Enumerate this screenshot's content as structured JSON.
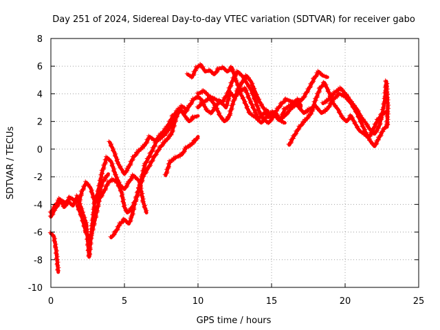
{
  "chart_data": {
    "type": "line",
    "title": "Day 251 of 2024, Sidereal Day-to-day VTEC variation (SDTVAR) for receiver gabo",
    "xlabel": "GPS time / hours",
    "ylabel": "SDTVAR / TECUs",
    "xlim": [
      0,
      25
    ],
    "ylim": [
      -10,
      8
    ],
    "xticks": [
      0,
      5,
      10,
      15,
      20,
      25
    ],
    "yticks": [
      -10,
      -8,
      -6,
      -4,
      -2,
      0,
      2,
      4,
      6,
      8
    ],
    "xtick_labels": [
      "0",
      "5",
      "10",
      "15",
      "20",
      "25"
    ],
    "ytick_labels": [
      "-10",
      "-8",
      "-6",
      "-4",
      "-2",
      "0",
      "2",
      "4",
      "6",
      "8"
    ],
    "grid": true,
    "marker": "plus",
    "color": "#ff0000",
    "series": [
      {
        "name": "trace-1",
        "points": [
          [
            0.0,
            -4.6
          ],
          [
            0.3,
            -4.1
          ],
          [
            0.6,
            -3.6
          ],
          [
            0.9,
            -4.2
          ],
          [
            1.2,
            -3.8
          ],
          [
            1.5,
            -4.1
          ],
          [
            1.8,
            -3.4
          ],
          [
            2.1,
            -4.4
          ],
          [
            2.4,
            -5.4
          ],
          [
            2.6,
            -7.8
          ],
          [
            2.8,
            -5.6
          ],
          [
            3.0,
            -3.6
          ],
          [
            3.3,
            -3.2
          ],
          [
            3.5,
            -2.4
          ],
          [
            3.9,
            -1.8
          ]
        ]
      },
      {
        "name": "trace-2",
        "points": [
          [
            0.0,
            -6.1
          ],
          [
            0.2,
            -6.3
          ],
          [
            0.35,
            -7.2
          ],
          [
            0.5,
            -8.9
          ]
        ]
      },
      {
        "name": "trace-3",
        "points": [
          [
            0.0,
            -4.9
          ],
          [
            0.3,
            -4.3
          ],
          [
            0.7,
            -3.7
          ],
          [
            1.0,
            -3.9
          ],
          [
            1.3,
            -3.5
          ],
          [
            1.6,
            -3.7
          ],
          [
            1.9,
            -3.9
          ],
          [
            2.1,
            -3.1
          ],
          [
            2.4,
            -2.4
          ],
          [
            2.7,
            -2.8
          ],
          [
            3.0,
            -3.9
          ],
          [
            3.2,
            -3.1
          ],
          [
            3.5,
            -1.6
          ],
          [
            3.8,
            -0.6
          ],
          [
            4.1,
            -0.9
          ],
          [
            4.4,
            -1.9
          ],
          [
            4.7,
            -2.6
          ],
          [
            5.0,
            -2.9
          ],
          [
            5.3,
            -2.4
          ],
          [
            5.6,
            -1.9
          ],
          [
            6.0,
            -2.3
          ],
          [
            6.3,
            -3.9
          ],
          [
            6.5,
            -4.6
          ]
        ]
      },
      {
        "name": "trace-4",
        "points": [
          [
            1.8,
            -4.1
          ],
          [
            2.1,
            -4.9
          ],
          [
            2.4,
            -6.1
          ],
          [
            2.7,
            -6.4
          ],
          [
            3.0,
            -5.1
          ],
          [
            3.3,
            -3.6
          ],
          [
            3.6,
            -3.1
          ],
          [
            3.9,
            -2.4
          ],
          [
            4.2,
            -2.2
          ],
          [
            4.5,
            -2.4
          ],
          [
            4.8,
            -3.1
          ],
          [
            5.0,
            -4.2
          ],
          [
            5.2,
            -4.6
          ],
          [
            5.5,
            -4.3
          ],
          [
            5.8,
            -3.6
          ],
          [
            6.1,
            -2.4
          ],
          [
            6.4,
            -1.1
          ],
          [
            6.8,
            -0.3
          ],
          [
            7.2,
            0.6
          ],
          [
            7.6,
            0.9
          ],
          [
            8.0,
            1.4
          ],
          [
            8.4,
            2.1
          ],
          [
            8.8,
            2.9
          ],
          [
            9.1,
            2.4
          ],
          [
            9.4,
            2.0
          ],
          [
            9.7,
            2.3
          ],
          [
            10.0,
            2.4
          ]
        ]
      },
      {
        "name": "trace-5",
        "points": [
          [
            4.0,
            0.5
          ],
          [
            4.3,
            -0.2
          ],
          [
            4.6,
            -1.1
          ],
          [
            5.0,
            -1.8
          ],
          [
            5.3,
            -1.3
          ],
          [
            5.6,
            -0.6
          ],
          [
            6.0,
            -0.1
          ],
          [
            6.4,
            0.3
          ],
          [
            6.7,
            0.9
          ],
          [
            7.1,
            0.6
          ],
          [
            7.5,
            1.1
          ],
          [
            7.9,
            1.6
          ],
          [
            8.3,
            2.4
          ],
          [
            8.7,
            2.9
          ],
          [
            9.1,
            2.6
          ],
          [
            9.4,
            3.1
          ],
          [
            9.7,
            3.6
          ],
          [
            10.0,
            3.8
          ],
          [
            10.4,
            3.4
          ],
          [
            10.8,
            3.7
          ],
          [
            11.2,
            3.1
          ],
          [
            11.5,
            3.5
          ],
          [
            11.9,
            3.0
          ],
          [
            12.2,
            4.1
          ],
          [
            12.5,
            3.7
          ],
          [
            12.8,
            4.2
          ],
          [
            13.1,
            3.6
          ],
          [
            13.5,
            2.6
          ],
          [
            13.9,
            2.3
          ],
          [
            14.3,
            1.9
          ],
          [
            14.7,
            2.4
          ],
          [
            15.1,
            2.7
          ],
          [
            15.5,
            2.1
          ],
          [
            15.9,
            1.9
          ]
        ]
      },
      {
        "name": "trace-6",
        "points": [
          [
            4.1,
            -6.4
          ],
          [
            4.4,
            -6.0
          ],
          [
            4.7,
            -5.4
          ],
          [
            5.0,
            -5.1
          ],
          [
            5.3,
            -5.4
          ],
          [
            5.5,
            -4.9
          ],
          [
            5.7,
            -3.9
          ],
          [
            6.0,
            -2.9
          ],
          [
            6.3,
            -1.9
          ],
          [
            6.6,
            -1.4
          ],
          [
            7.0,
            -0.6
          ],
          [
            7.4,
            0.1
          ],
          [
            7.8,
            0.6
          ],
          [
            8.2,
            1.1
          ],
          [
            8.6,
            2.6
          ],
          [
            8.9,
            3.1
          ],
          [
            9.2,
            2.9
          ]
        ]
      },
      {
        "name": "trace-7",
        "points": [
          [
            7.8,
            -1.9
          ],
          [
            8.1,
            -0.9
          ],
          [
            8.5,
            -0.6
          ],
          [
            8.9,
            -0.4
          ],
          [
            9.2,
            0.1
          ],
          [
            9.5,
            0.3
          ],
          [
            9.8,
            0.6
          ],
          [
            10.0,
            0.9
          ]
        ]
      },
      {
        "name": "trace-8",
        "points": [
          [
            9.3,
            5.4
          ],
          [
            9.6,
            5.2
          ],
          [
            9.9,
            5.9
          ],
          [
            10.2,
            6.1
          ],
          [
            10.5,
            5.6
          ],
          [
            10.8,
            5.7
          ],
          [
            11.1,
            5.4
          ],
          [
            11.4,
            5.8
          ],
          [
            11.7,
            5.9
          ],
          [
            12.0,
            5.6
          ],
          [
            12.3,
            5.9
          ],
          [
            12.6,
            4.9
          ],
          [
            12.9,
            4.2
          ],
          [
            13.2,
            4.4
          ],
          [
            13.5,
            3.6
          ],
          [
            13.8,
            2.9
          ],
          [
            14.1,
            2.2
          ],
          [
            14.4,
            2.5
          ],
          [
            14.7,
            2.8
          ],
          [
            15.0,
            2.3
          ],
          [
            15.3,
            2.6
          ],
          [
            15.6,
            2.1
          ],
          [
            15.9,
            2.9
          ],
          [
            16.2,
            3.1
          ],
          [
            16.5,
            3.4
          ],
          [
            16.8,
            3.6
          ],
          [
            17.0,
            3.1
          ]
        ]
      },
      {
        "name": "trace-9",
        "points": [
          [
            10.0,
            3.0
          ],
          [
            10.3,
            3.4
          ],
          [
            10.6,
            2.8
          ],
          [
            10.9,
            2.6
          ],
          [
            11.2,
            3.1
          ],
          [
            11.5,
            2.4
          ],
          [
            11.8,
            2.0
          ],
          [
            12.1,
            2.3
          ],
          [
            12.4,
            3.4
          ],
          [
            12.7,
            4.3
          ],
          [
            13.0,
            4.8
          ],
          [
            13.3,
            5.3
          ],
          [
            13.6,
            4.9
          ],
          [
            13.9,
            4.1
          ],
          [
            14.2,
            3.4
          ],
          [
            14.5,
            2.9
          ],
          [
            14.8,
            2.3
          ],
          [
            15.1,
            2.6
          ],
          [
            15.5,
            2.1
          ],
          [
            15.9,
            2.4
          ],
          [
            16.3,
            2.9
          ],
          [
            16.7,
            3.3
          ],
          [
            17.1,
            3.6
          ],
          [
            17.5,
            4.3
          ],
          [
            17.9,
            5.1
          ],
          [
            18.2,
            5.6
          ],
          [
            18.5,
            5.3
          ],
          [
            18.8,
            5.2
          ]
        ]
      },
      {
        "name": "trace-10",
        "points": [
          [
            10.0,
            4.0
          ],
          [
            10.4,
            4.2
          ],
          [
            10.8,
            3.8
          ],
          [
            11.2,
            3.6
          ],
          [
            11.6,
            3.3
          ],
          [
            12.0,
            4.0
          ],
          [
            12.4,
            5.1
          ],
          [
            12.7,
            5.6
          ],
          [
            13.0,
            5.3
          ],
          [
            13.3,
            4.8
          ],
          [
            13.6,
            4.3
          ],
          [
            13.9,
            3.5
          ],
          [
            14.2,
            2.6
          ],
          [
            14.5,
            2.1
          ],
          [
            14.8,
            1.9
          ],
          [
            15.1,
            2.3
          ],
          [
            15.4,
            2.9
          ],
          [
            15.7,
            3.3
          ],
          [
            16.0,
            3.6
          ],
          [
            16.4,
            3.4
          ],
          [
            16.8,
            3.1
          ],
          [
            17.2,
            2.6
          ],
          [
            17.6,
            2.9
          ],
          [
            18.0,
            3.1
          ],
          [
            18.4,
            2.6
          ],
          [
            18.8,
            2.9
          ],
          [
            19.2,
            3.6
          ],
          [
            19.6,
            4.0
          ],
          [
            20.0,
            3.8
          ],
          [
            20.4,
            3.3
          ],
          [
            20.8,
            2.6
          ],
          [
            21.1,
            1.9
          ],
          [
            21.4,
            1.2
          ],
          [
            21.7,
            0.6
          ],
          [
            22.0,
            0.2
          ],
          [
            22.3,
            0.8
          ],
          [
            22.6,
            1.4
          ],
          [
            22.9,
            1.8
          ]
        ]
      },
      {
        "name": "trace-11",
        "points": [
          [
            16.2,
            0.3
          ],
          [
            16.5,
            0.9
          ],
          [
            16.9,
            1.6
          ],
          [
            17.3,
            2.1
          ],
          [
            17.7,
            2.6
          ],
          [
            18.0,
            3.6
          ],
          [
            18.3,
            4.4
          ],
          [
            18.6,
            4.8
          ],
          [
            18.9,
            4.1
          ],
          [
            19.2,
            3.3
          ],
          [
            19.5,
            2.9
          ],
          [
            19.8,
            2.3
          ],
          [
            20.1,
            2.0
          ],
          [
            20.4,
            2.4
          ],
          [
            20.7,
            1.8
          ],
          [
            21.0,
            1.3
          ],
          [
            21.3,
            1.1
          ],
          [
            21.6,
            0.8
          ],
          [
            21.9,
            1.4
          ],
          [
            22.2,
            2.1
          ],
          [
            22.5,
            2.5
          ],
          [
            22.8,
            2.7
          ]
        ]
      },
      {
        "name": "trace-12",
        "points": [
          [
            18.5,
            3.3
          ],
          [
            18.9,
            3.6
          ],
          [
            19.3,
            4.1
          ],
          [
            19.7,
            4.4
          ],
          [
            20.1,
            3.9
          ],
          [
            20.5,
            3.3
          ],
          [
            20.8,
            2.9
          ],
          [
            21.1,
            2.3
          ],
          [
            21.4,
            1.9
          ],
          [
            21.7,
            1.4
          ],
          [
            22.0,
            1.1
          ],
          [
            22.3,
            1.6
          ],
          [
            22.5,
            2.4
          ],
          [
            22.7,
            3.6
          ],
          [
            22.8,
            4.9
          ],
          [
            22.9,
            3.1
          ],
          [
            22.85,
            1.6
          ]
        ]
      }
    ]
  }
}
